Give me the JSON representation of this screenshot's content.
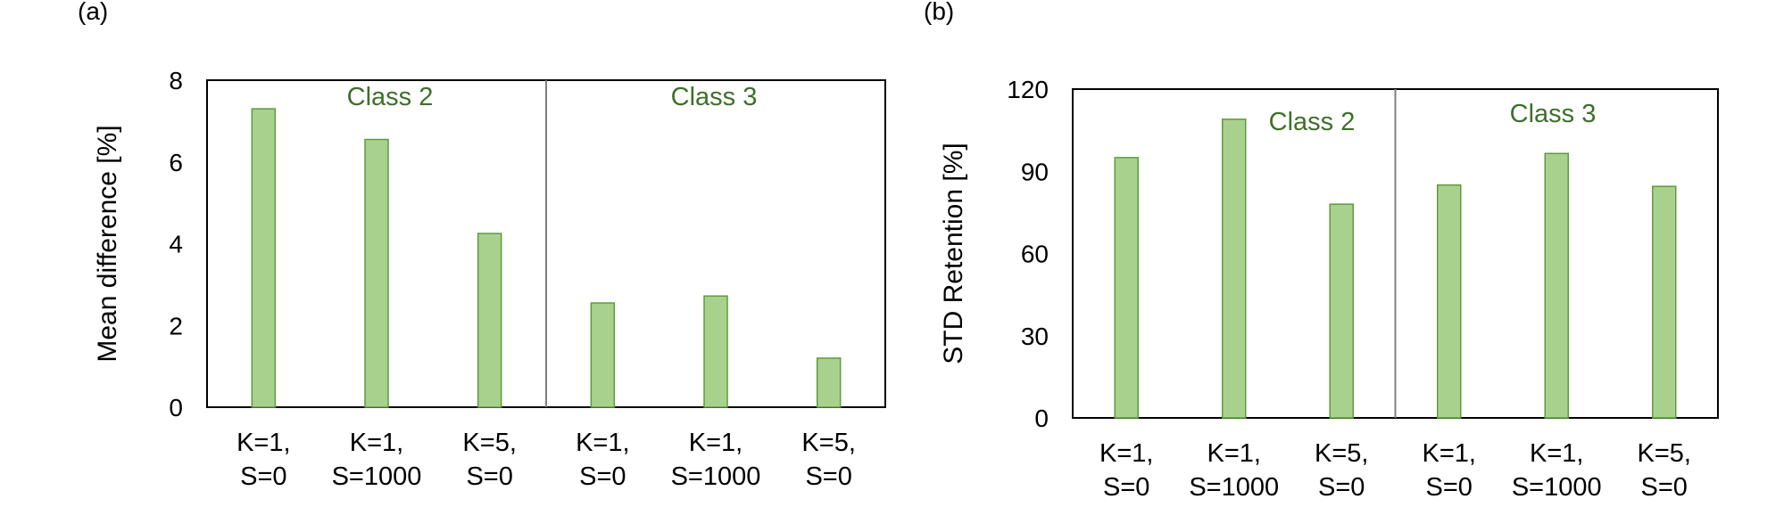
{
  "panels": [
    "(a)",
    "(b)"
  ],
  "chart_data": [
    {
      "type": "bar",
      "panel_label": "(a)",
      "ylabel": "Mean difference [%]",
      "ylim": [
        0,
        8
      ],
      "yticks": [
        0,
        2,
        4,
        6,
        8
      ],
      "categories": [
        [
          "K=1,",
          "S=0"
        ],
        [
          "K=1,",
          "S=1000"
        ],
        [
          "K=5,",
          "S=0"
        ],
        [
          "K=1,",
          "S=0"
        ],
        [
          "K=1,",
          "S=1000"
        ],
        [
          "K=5,",
          "S=0"
        ]
      ],
      "groups": [
        {
          "label": "Class 2",
          "categories": [
            0,
            1,
            2
          ]
        },
        {
          "label": "Class 3",
          "categories": [
            3,
            4,
            5
          ]
        }
      ],
      "values": [
        7.3,
        6.55,
        4.25,
        2.55,
        2.72,
        1.2
      ],
      "grid": false,
      "legend": "none"
    },
    {
      "type": "bar",
      "panel_label": "(b)",
      "ylabel": "STD Retention [%]",
      "ylim": [
        0,
        120
      ],
      "yticks": [
        0,
        30,
        60,
        90,
        120
      ],
      "categories": [
        [
          "K=1,",
          "S=0"
        ],
        [
          "K=1,",
          "S=1000"
        ],
        [
          "K=5,",
          "S=0"
        ],
        [
          "K=1,",
          "S=0"
        ],
        [
          "K=1,",
          "S=1000"
        ],
        [
          "K=5,",
          "S=0"
        ]
      ],
      "groups": [
        {
          "label": "Class 2",
          "categories": [
            0,
            1,
            2
          ]
        },
        {
          "label": "Class 3",
          "categories": [
            3,
            4,
            5
          ]
        }
      ],
      "values": [
        95,
        109,
        78,
        85,
        96.5,
        84.5
      ],
      "grid": false,
      "legend": "none"
    }
  ],
  "colors": {
    "bar_fill": "#a9d18e",
    "bar_stroke": "#5f9a3c",
    "group_label": "#3f6f2a",
    "divider": "#7f7f7f",
    "axis": "#000000"
  }
}
